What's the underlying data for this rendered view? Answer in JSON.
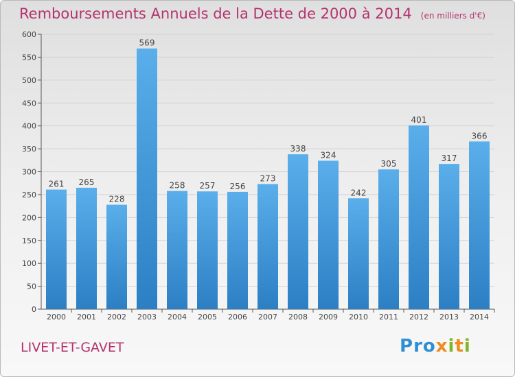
{
  "title": "Remboursements Annuels de la Dette de 2000 à 2014",
  "subtitle": "(en milliers d'€)",
  "town": "LIVET-ET-GAVET",
  "logo": "Proxiti",
  "colors": {
    "bar_top": "#5aaeea",
    "bar_bottom": "#2c7fc4",
    "title": "#b4326e"
  },
  "chart_data": {
    "type": "bar",
    "title": "Remboursements Annuels de la Dette de 2000 à 2014",
    "subtitle": "(en milliers d'€)",
    "categories": [
      "2000",
      "2001",
      "2002",
      "2003",
      "2004",
      "2005",
      "2006",
      "2007",
      "2008",
      "2009",
      "2010",
      "2011",
      "2012",
      "2013",
      "2014"
    ],
    "values": [
      261,
      265,
      228,
      569,
      258,
      257,
      256,
      273,
      338,
      324,
      242,
      305,
      401,
      317,
      366
    ],
    "ylim": [
      0,
      600
    ],
    "yticks": [
      0,
      50,
      100,
      150,
      200,
      250,
      300,
      350,
      400,
      450,
      500,
      550,
      600
    ],
    "grid": true,
    "legend": "none"
  }
}
